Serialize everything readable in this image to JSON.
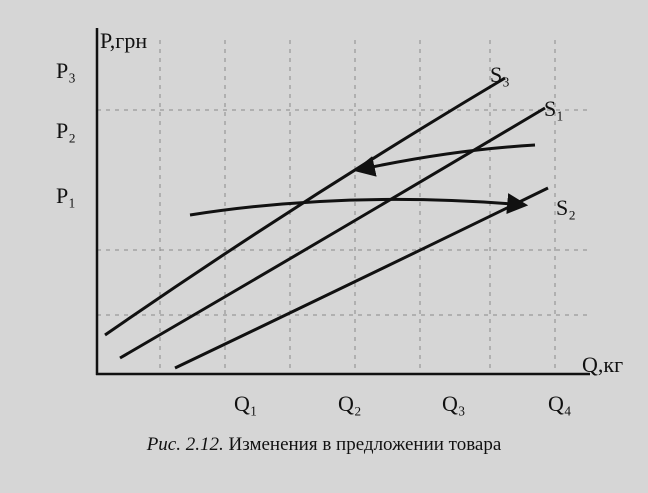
{
  "diagram": {
    "y_axis_label": "P,грн",
    "x_axis_label": "Q,кг",
    "price_levels": [
      "P₃",
      "P₂",
      "P₁"
    ],
    "quantity_levels": [
      "Q₁",
      "Q₂",
      "Q₃",
      "Q₄"
    ],
    "curves": [
      "S₃",
      "S₁",
      "S₂"
    ]
  },
  "caption": {
    "number": "Рис. 2.12.",
    "text": "Изменения в предложении товара"
  }
}
